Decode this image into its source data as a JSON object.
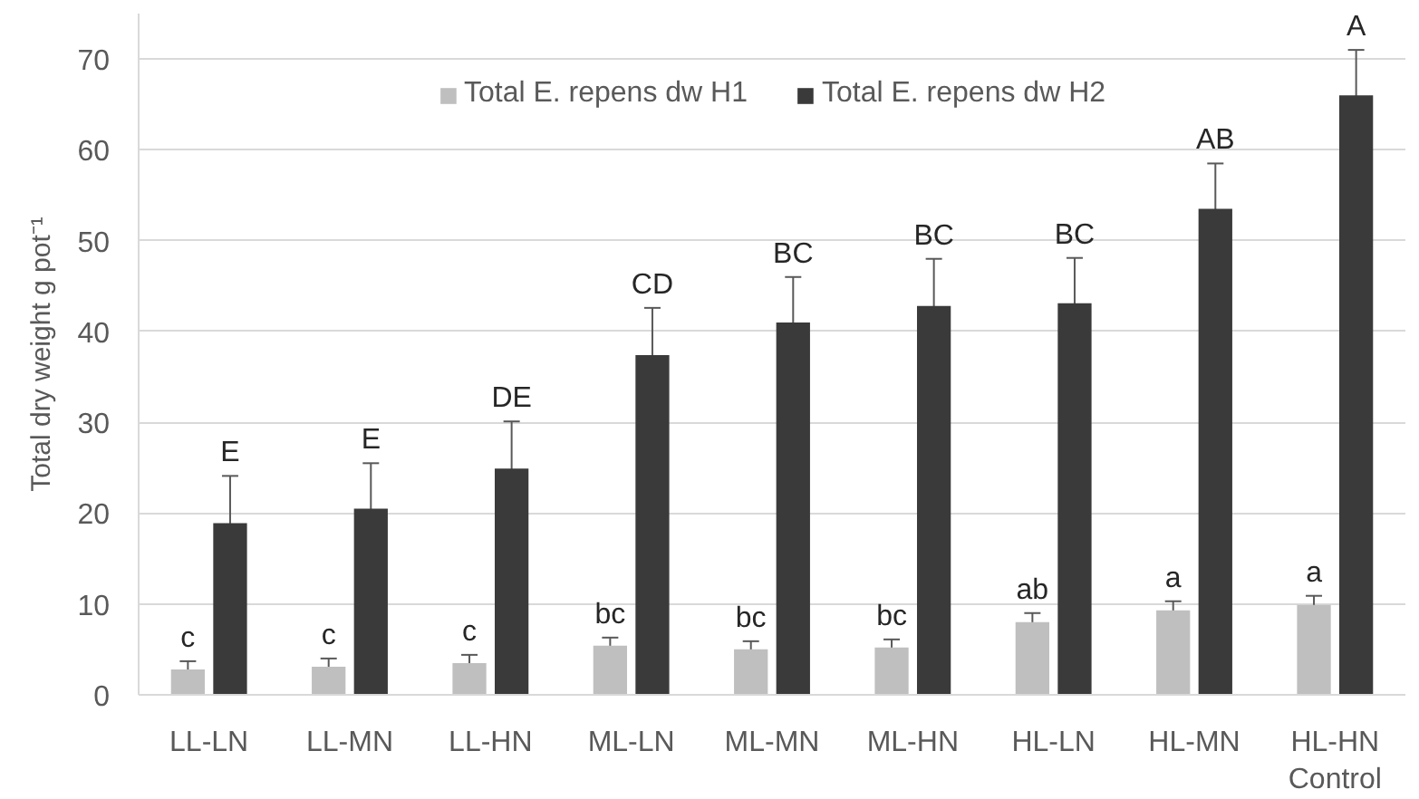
{
  "chart_data": {
    "type": "bar",
    "ylabel": "Total dry weight g pot⁻¹",
    "categories": [
      "LL-LN",
      "LL-MN",
      "LL-HN",
      "ML-LN",
      "ML-MN",
      "ML-HN",
      "HL-LN",
      "HL-MN",
      "HL-HN Control"
    ],
    "series": [
      {
        "name": "Total E. repens dw H1",
        "color": "#bfbfbf",
        "values": [
          2.8,
          3.1,
          3.5,
          5.4,
          5.0,
          5.2,
          8.0,
          9.3,
          9.9
        ],
        "errors": [
          0.9,
          0.9,
          0.9,
          0.9,
          0.9,
          0.9,
          1.0,
          1.0,
          1.0
        ],
        "value_labels": [
          "c",
          "c",
          "c",
          "bc",
          "bc",
          "bc",
          "ab",
          "a",
          "a"
        ]
      },
      {
        "name": "Total E. repens dw H2",
        "color": "#3a3a3a",
        "values": [
          18.9,
          20.5,
          24.9,
          37.4,
          41.0,
          42.8,
          43.1,
          53.5,
          66.0
        ],
        "errors": [
          5.2,
          5.0,
          5.2,
          5.2,
          5.0,
          5.2,
          5.0,
          5.0,
          5.0
        ],
        "value_labels": [
          "E",
          "E",
          "DE",
          "CD",
          "BC",
          "BC",
          "BC",
          "AB",
          "A"
        ]
      }
    ],
    "ylim": [
      0,
      75
    ],
    "yticks": [
      0,
      10,
      20,
      30,
      40,
      50,
      60,
      70
    ],
    "grid": "y",
    "legend": "top"
  }
}
